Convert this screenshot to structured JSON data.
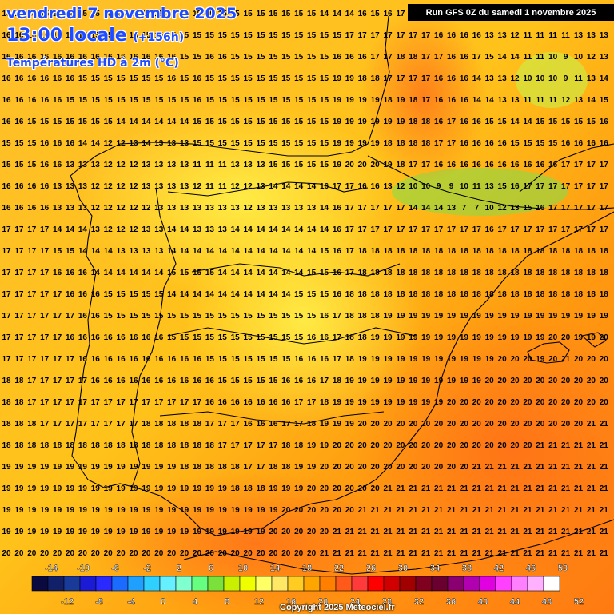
{
  "header": {
    "date": "vendredi 7 novembre 2025",
    "time": "13:00 locale",
    "lead": "(+156h)",
    "variable": "Températures HD à 2m (°C)"
  },
  "run_info": "Run GFS 0Z du samedi 1 novembre 2025",
  "copyright": "Copyright 2025 Meteociel.fr",
  "legend": {
    "top_labels": [
      "-14",
      "-10",
      "-6",
      "-2",
      "2",
      "6",
      "10",
      "14",
      "18",
      "22",
      "26",
      "30",
      "34",
      "38",
      "42",
      "46",
      "50"
    ],
    "bottom_labels": [
      "-12",
      "-8",
      "-4",
      "0",
      "4",
      "8",
      "12",
      "16",
      "20",
      "24",
      "28",
      "32",
      "36",
      "40",
      "44",
      "48",
      "52"
    ],
    "colors": [
      "#0a0a40",
      "#12206a",
      "#1a3a9a",
      "#1b1bd6",
      "#2a2aff",
      "#1a6bff",
      "#1fa0ff",
      "#2fd0ff",
      "#66f0ff",
      "#80ffcf",
      "#66ff80",
      "#7ae03a",
      "#c8f000",
      "#f0ff00",
      "#ffff66",
      "#ffe866",
      "#ffcc22",
      "#ffa500",
      "#ff8000",
      "#ff5a1a",
      "#ff3a3a",
      "#ff0000",
      "#d00000",
      "#a00000",
      "#800020",
      "#6a0030",
      "#8a0070",
      "#b000b0",
      "#e000e0",
      "#ff40ff",
      "#ff80ff",
      "#ffb0ff",
      "#ffffff"
    ]
  },
  "map": {
    "region": "Péninsule Ibérique",
    "grid_values": [
      "15 15 15 15 15 15 15 15 15 15 15 15 15 15 15 15 15 15 15 15 15 15 15 15 15 14 14 14 16 15 16 17 17 16 16 14 14 14 13 13 13 13 13 12 12 11 12 12",
      "16 16 16 16 16 16 15 15 15 15 15 15 15 15 15 15 15 15 15 15 15 15 15 15 15 15 15 17 17 17 17 17 17 17 16 16 16 16 13 13 12 11 11 11 11 13 13 13",
      "16 16 16 16 16 16 16 16 16 16 16 16 16 16 15 15 16 16 15 15 15 15 15 15 15 15 16 16 16 17 17 18 18 17 17 16 16 17 15 14 14 11 11 10 9 10 12 13",
      "16 16 16 16 16 16 15 15 15 15 15 15 15 16 15 16 15 15 15 15 15 15 15 15 15 15 19 19 18 18 17 17 17 17 16 16 16 14 13 13 12 10 10 10 9 11 13 14",
      "16 16 16 16 16 15 15 15 15 15 15 15 15 15 15 16 15 15 15 15 15 15 15 15 15 15 19 19 19 19 18 19 18 17 16 16 16 14 14 13 13 11 11 11 12 13 14 15",
      "16 16 15 15 15 15 15 15 15 14 14 14 14 14 14 15 15 15 15 15 15 15 15 15 15 15 19 19 19 19 19 19 18 18 16 17 16 16 15 15 14 14 15 15 15 15 15 16",
      "15 15 15 16 16 16 14 14 12 12 13 14 13 13 13 15 15 15 15 15 15 15 15 15 15 15 19 19 19 19 18 18 18 18 17 17 16 16 16 16 15 15 15 15 16 16 16 16",
      "15 15 15 16 16 13 13 13 12 12 12 13 13 13 13 11 11 11 13 13 13 15 15 15 15 15 19 20 20 20 19 18 17 17 16 16 16 16 16 16 16 16 16 16 17 17 17 17",
      "16 16 16 16 13 13 13 12 12 12 12 13 13 13 13 12 11 11 12 12 13 14 14 14 14 16 17 17 16 16 13 12 10 10 9 9 10 11 13 15 16 17 17 17 17 17 17 17",
      "16 16 16 16 13 13 13 12 12 12 12 12 13 13 13 13 13 13 13 12 13 13 13 13 13 14 16 17 17 17 17 17 14 14 14 13 7 7 10 12 13 15 16 17 17 17 17 17",
      "17 17 17 17 14 14 14 13 12 12 12 13 13 14 14 13 13 13 14 14 14 14 14 14 14 14 16 17 17 17 17 17 17 17 17 17 17 17 16 17 17 17 17 17 17 17 17 17",
      "17 17 17 17 15 15 14 14 14 13 13 13 13 14 14 14 14 14 14 14 14 14 14 14 14 15 16 17 18 18 18 18 18 18 18 18 18 18 18 18 18 18 18 18 18 18 18 18",
      "17 17 17 17 16 16 16 14 14 14 14 14 14 15 15 15 15 14 14 14 14 14 14 14 15 15 16 17 18 18 18 18 18 18 18 18 18 18 18 18 18 18 18 18 18 18 18 18",
      "17 17 17 17 17 16 16 16 15 15 15 15 15 14 14 14 14 14 14 14 14 14 14 15 15 15 16 18 18 18 18 18 18 18 18 18 18 18 18 18 18 18 18 18 18 18 18 18",
      "17 17 17 17 17 17 16 16 15 15 15 15 15 15 15 15 15 15 15 15 15 15 15 15 15 16 17 18 18 18 19 19 19 19 19 19 19 19 19 19 19 19 19 19 19 19 19 19",
      "17 17 17 17 17 16 16 16 16 16 16 16 16 15 15 15 15 15 15 15 15 15 15 15 16 16 17 18 18 19 19 19 19 19 19 19 19 19 19 19 19 19 19 20 20 19 19 20",
      "17 17 17 17 17 17 16 16 16 16 16 16 16 16 16 16 15 15 15 15 15 15 15 16 16 16 17 18 19 19 19 19 19 19 19 19 19 19 19 20 20 20 19 20 21 20 20 20",
      "18 18 17 17 17 17 17 16 16 16 16 16 16 16 16 16 16 15 15 15 15 15 16 16 16 17 18 19 19 19 19 19 19 19 19 19 19 19 20 20 20 20 20 20 20 20 20 20",
      "18 18 17 17 17 17 17 17 17 17 17 17 17 17 17 17 16 16 16 16 16 16 16 17 17 18 19 19 19 19 19 19 19 19 19 20 20 20 20 20 20 20 20 20 20 20 20 20",
      "18 18 18 17 17 17 17 17 17 17 17 18 18 18 18 18 17 17 17 16 16 16 17 17 18 19 19 19 20 20 20 20 20 20 20 20 20 20 20 20 20 20 20 20 20 20 21 21",
      "18 18 18 18 18 18 18 18 18 18 18 18 18 18 18 18 18 17 17 17 17 17 18 18 19 19 20 20 20 20 20 20 20 20 20 20 20 20 20 20 20 20 21 21 21 21 21 21",
      "19 19 19 19 19 19 19 19 19 19 19 19 19 19 18 18 18 18 18 17 17 18 18 19 19 20 20 20 20 20 20 20 20 20 20 20 20 21 21 21 21 21 21 21 21 21 21 21",
      "19 19 19 19 19 19 19 19 19 19 19 19 19 19 19 19 19 19 18 18 18 19 19 19 20 20 20 20 20 20 21 21 21 21 21 21 21 21 21 21 21 21 21 21 21 21 21 21",
      "19 19 19 19 19 19 19 19 19 19 19 19 19 19 19 19 19 19 19 19 19 19 20 20 20 20 20 20 21 21 21 21 21 21 21 21 21 21 21 21 21 21 21 21 21 21 21 21",
      "19 19 19 19 19 19 19 19 19 19 19 19 19 19 19 19 19 19 19 19 19 20 20 20 20 20 21 21 21 21 21 21 21 21 21 21 21 21 21 21 21 21 21 21 21 21 21 21",
      "20 20 20 20 20 20 20 20 20 20 20 20 20 20 20 20 20 20 20 20 20 20 20 20 20 21 21 21 21 21 21 21 21 21 21 21 21 21 21 21 21 21 21 21 21 21 21 21"
    ]
  }
}
